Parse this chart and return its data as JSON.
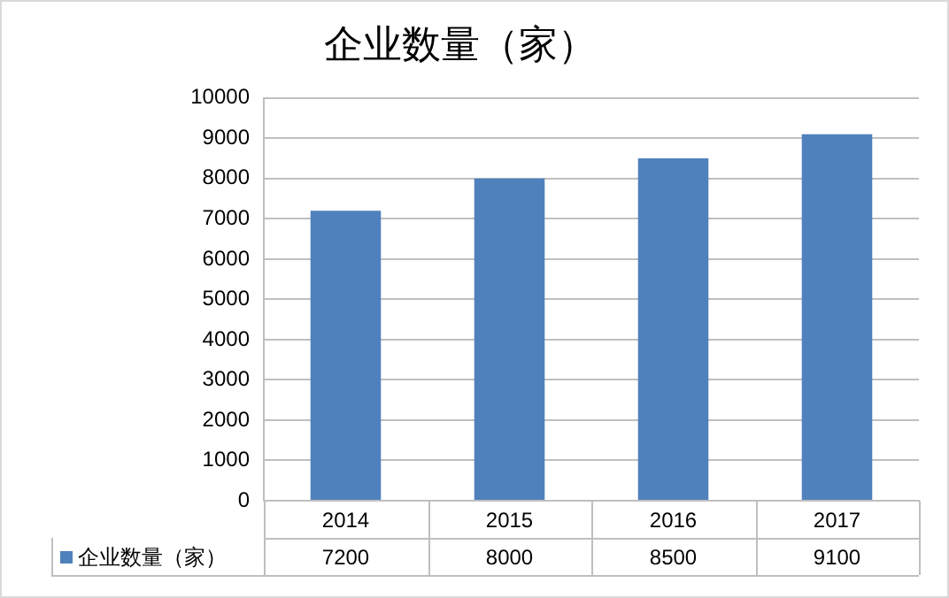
{
  "chart_data": {
    "type": "bar",
    "title": "企业数量（家）",
    "categories": [
      "2014",
      "2015",
      "2016",
      "2017"
    ],
    "series": [
      {
        "name": "企业数量（家）",
        "color": "#4f81bd",
        "values": [
          7200,
          8000,
          8500,
          9100
        ]
      }
    ],
    "ylim": [
      0,
      10000
    ],
    "yticks": [
      0,
      1000,
      2000,
      3000,
      4000,
      5000,
      6000,
      7000,
      8000,
      9000,
      10000
    ],
    "grid": "y",
    "legend": "bottom",
    "data_labels": true
  }
}
